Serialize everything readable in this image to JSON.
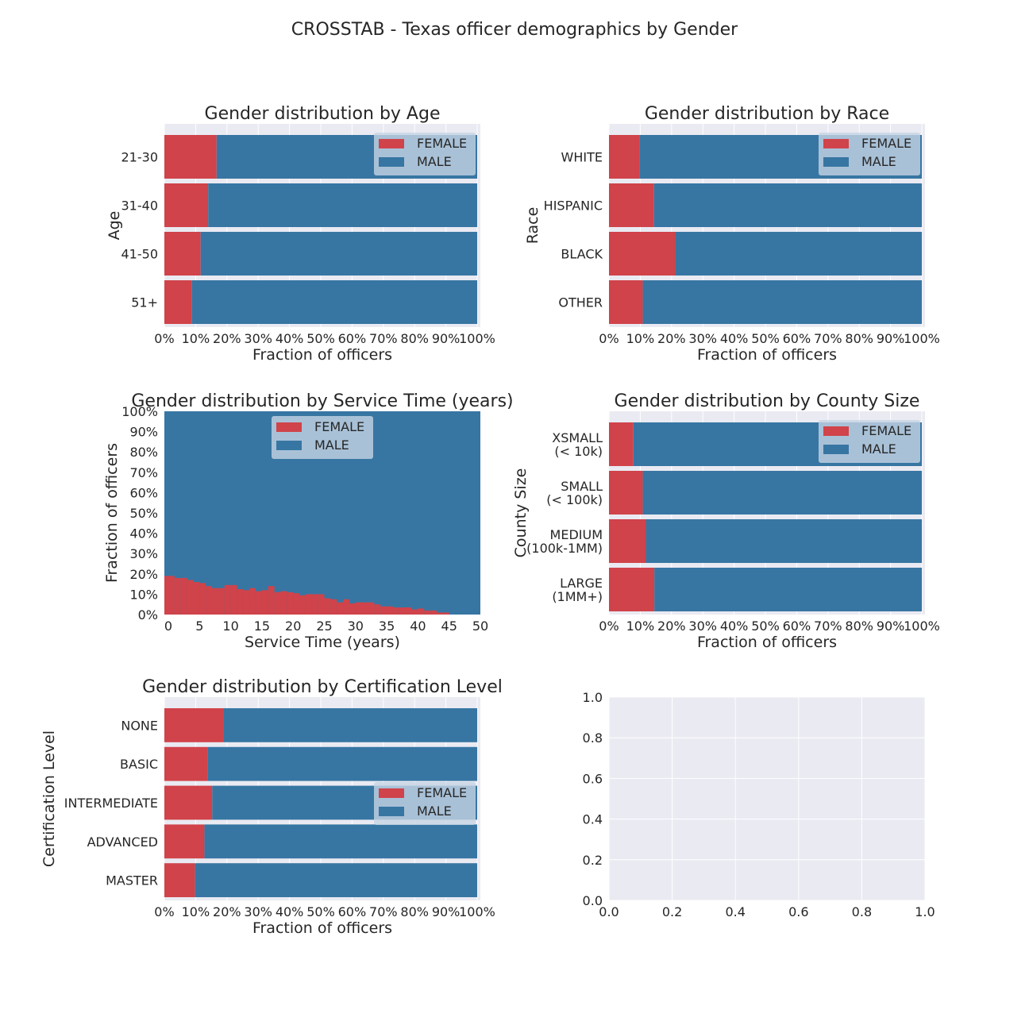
{
  "figure": {
    "title": "CROSSTAB - Texas officer demographics by Gender"
  },
  "colors": {
    "female": "#d0434a",
    "male": "#3776a3",
    "axes_bg": "#eaeaf2",
    "grid": "#ffffff",
    "legend_bg": "#c6d4e3"
  },
  "chart_data": [
    {
      "type": "bar",
      "orientation": "horizontal-stacked",
      "title": "Gender distribution by Age",
      "xlabel": "Fraction of officers",
      "ylabel": "Age",
      "xlim": [
        0,
        1
      ],
      "xticks": [
        "0%",
        "10%",
        "20%",
        "30%",
        "40%",
        "50%",
        "60%",
        "70%",
        "80%",
        "90%",
        "100%"
      ],
      "categories": [
        "21-30",
        "31-40",
        "41-50",
        "51+"
      ],
      "series": [
        {
          "name": "FEMALE",
          "values": [
            0.167,
            0.14,
            0.116,
            0.088
          ]
        },
        {
          "name": "MALE",
          "values": [
            0.833,
            0.86,
            0.884,
            0.912
          ]
        }
      ],
      "legend": "upper right"
    },
    {
      "type": "bar",
      "orientation": "horizontal-stacked",
      "title": "Gender distribution by Race",
      "xlabel": "Fraction of officers",
      "ylabel": "Race",
      "xlim": [
        0,
        1
      ],
      "xticks": [
        "0%",
        "10%",
        "20%",
        "30%",
        "40%",
        "50%",
        "60%",
        "70%",
        "80%",
        "90%",
        "100%"
      ],
      "categories": [
        "WHITE",
        "HISPANIC",
        "BLACK",
        "OTHER"
      ],
      "series": [
        {
          "name": "FEMALE",
          "values": [
            0.098,
            0.144,
            0.212,
            0.108
          ]
        },
        {
          "name": "MALE",
          "values": [
            0.902,
            0.856,
            0.788,
            0.892
          ]
        }
      ],
      "legend": "upper right"
    },
    {
      "type": "area",
      "title": "Gender distribution by Service Time (years)",
      "xlabel": "Service Time (years)",
      "ylabel": "Fraction of officers",
      "xlim": [
        0,
        50
      ],
      "ylim": [
        0,
        1
      ],
      "xticks": [
        "0",
        "5",
        "10",
        "15",
        "20",
        "25",
        "30",
        "35",
        "40",
        "45",
        "50"
      ],
      "yticks": [
        "0%",
        "10%",
        "20%",
        "30%",
        "40%",
        "50%",
        "60%",
        "70%",
        "80%",
        "90%",
        "100%"
      ],
      "x": [
        0,
        1,
        2,
        3,
        4,
        5,
        6,
        7,
        8,
        9,
        10,
        11,
        12,
        13,
        14,
        15,
        16,
        17,
        18,
        19,
        20,
        21,
        22,
        23,
        24,
        25,
        26,
        27,
        28,
        29,
        30,
        31,
        32,
        33,
        34,
        35,
        36,
        37,
        38,
        39,
        40,
        41,
        42,
        43,
        44,
        45,
        46,
        47,
        48,
        49
      ],
      "series": [
        {
          "name": "FEMALE",
          "values": [
            0.19,
            0.18,
            0.18,
            0.17,
            0.16,
            0.155,
            0.14,
            0.13,
            0.13,
            0.145,
            0.145,
            0.125,
            0.12,
            0.13,
            0.115,
            0.12,
            0.14,
            0.11,
            0.115,
            0.11,
            0.105,
            0.095,
            0.1,
            0.1,
            0.1,
            0.08,
            0.075,
            0.06,
            0.075,
            0.055,
            0.06,
            0.06,
            0.06,
            0.05,
            0.04,
            0.04,
            0.035,
            0.035,
            0.035,
            0.025,
            0.03,
            0.02,
            0.02,
            0.01,
            0.01,
            0,
            0,
            0,
            0,
            0
          ]
        },
        {
          "name": "MALE",
          "values": [
            0.81,
            0.82,
            0.82,
            0.83,
            0.84,
            0.845,
            0.86,
            0.87,
            0.87,
            0.855,
            0.855,
            0.875,
            0.88,
            0.87,
            0.885,
            0.88,
            0.86,
            0.89,
            0.885,
            0.89,
            0.895,
            0.905,
            0.9,
            0.9,
            0.9,
            0.92,
            0.925,
            0.94,
            0.925,
            0.945,
            0.94,
            0.94,
            0.94,
            0.95,
            0.96,
            0.96,
            0.965,
            0.965,
            0.965,
            0.975,
            0.97,
            0.98,
            0.98,
            0.99,
            0.99,
            1,
            1,
            1,
            1,
            1
          ]
        }
      ],
      "legend": "upper center"
    },
    {
      "type": "bar",
      "orientation": "horizontal-stacked",
      "title": "Gender distribution by County Size",
      "xlabel": "Fraction of officers",
      "ylabel": "County Size",
      "xlim": [
        0,
        1
      ],
      "xticks": [
        "0%",
        "10%",
        "20%",
        "30%",
        "40%",
        "50%",
        "60%",
        "70%",
        "80%",
        "90%",
        "100%"
      ],
      "categories": [
        "XSMALL\n(< 10k)",
        "SMALL\n(< 100k)",
        "MEDIUM\n(100k-1MM)",
        "LARGE\n(1MM+)"
      ],
      "series": [
        {
          "name": "FEMALE",
          "values": [
            0.078,
            0.108,
            0.118,
            0.145
          ]
        },
        {
          "name": "MALE",
          "values": [
            0.922,
            0.892,
            0.882,
            0.855
          ]
        }
      ],
      "legend": "upper right"
    },
    {
      "type": "bar",
      "orientation": "horizontal-stacked",
      "title": "Gender distribution by Certification Level",
      "xlabel": "Fraction of officers",
      "ylabel": "Certification Level",
      "xlim": [
        0,
        1
      ],
      "xticks": [
        "0%",
        "10%",
        "20%",
        "30%",
        "40%",
        "50%",
        "60%",
        "70%",
        "80%",
        "90%",
        "100%"
      ],
      "categories": [
        "NONE",
        "BASIC",
        "INTERMEDIATE",
        "ADVANCED",
        "MASTER"
      ],
      "series": [
        {
          "name": "FEMALE",
          "values": [
            0.188,
            0.138,
            0.153,
            0.128,
            0.098
          ]
        },
        {
          "name": "MALE",
          "values": [
            0.812,
            0.862,
            0.847,
            0.872,
            0.902
          ]
        }
      ],
      "legend": "center right"
    },
    {
      "type": "scatter",
      "title": "",
      "xlabel": "",
      "ylabel": "",
      "xlim": [
        0,
        1
      ],
      "ylim": [
        0,
        1
      ],
      "xticks": [
        "0.0",
        "0.2",
        "0.4",
        "0.6",
        "0.8",
        "1.0"
      ],
      "yticks": [
        "0.0",
        "0.2",
        "0.4",
        "0.6",
        "0.8",
        "1.0"
      ],
      "series": []
    }
  ]
}
